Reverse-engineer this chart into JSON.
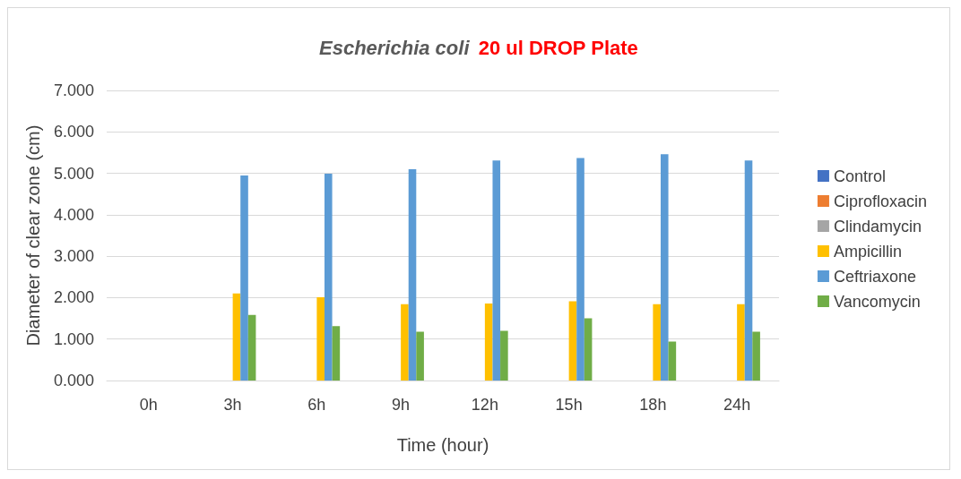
{
  "chart_data": {
    "type": "bar",
    "title": "Escherichia coli  20 ul DROP Plate",
    "xlabel": "Time (hour)",
    "ylabel": "Diameter of clear zone (cm)",
    "categories": [
      "0h",
      "3h",
      "6h",
      "9h",
      "12h",
      "15h",
      "18h",
      "24h"
    ],
    "series": [
      {
        "name": "Control",
        "color": "#4472c4",
        "values": [
          0,
          0,
          0,
          0,
          0,
          0,
          0,
          0
        ]
      },
      {
        "name": "Ciprofloxacin",
        "color": "#ed7d31",
        "values": [
          0,
          0,
          0,
          0,
          0,
          0,
          0,
          0
        ]
      },
      {
        "name": "Clindamycin",
        "color": "#a5a5a5",
        "values": [
          0,
          0,
          0,
          0,
          0,
          0,
          0,
          0
        ]
      },
      {
        "name": "Ampicillin",
        "color": "#ffc000",
        "values": [
          0,
          2.1,
          2.01,
          1.84,
          1.86,
          1.91,
          1.84,
          1.84
        ]
      },
      {
        "name": "Ceftriaxone",
        "color": "#5b9bd5",
        "values": [
          0,
          4.95,
          4.99,
          5.1,
          5.31,
          5.37,
          5.46,
          5.31
        ]
      },
      {
        "name": "Vancomycin",
        "color": "#70ad47",
        "values": [
          0,
          1.58,
          1.31,
          1.18,
          1.2,
          1.5,
          0.94,
          1.18
        ]
      }
    ],
    "ylim": [
      0,
      7
    ],
    "yticks": [
      {
        "value": 0,
        "label": "0.000"
      },
      {
        "value": 1,
        "label": "1.000"
      },
      {
        "value": 2,
        "label": "2.000"
      },
      {
        "value": 3,
        "label": "3.000"
      },
      {
        "value": 4,
        "label": "4.000"
      },
      {
        "value": 5,
        "label": "5.000"
      },
      {
        "value": 6,
        "label": "6.000"
      },
      {
        "value": 7,
        "label": "7.000"
      }
    ],
    "grid": "y",
    "legend": "right"
  }
}
